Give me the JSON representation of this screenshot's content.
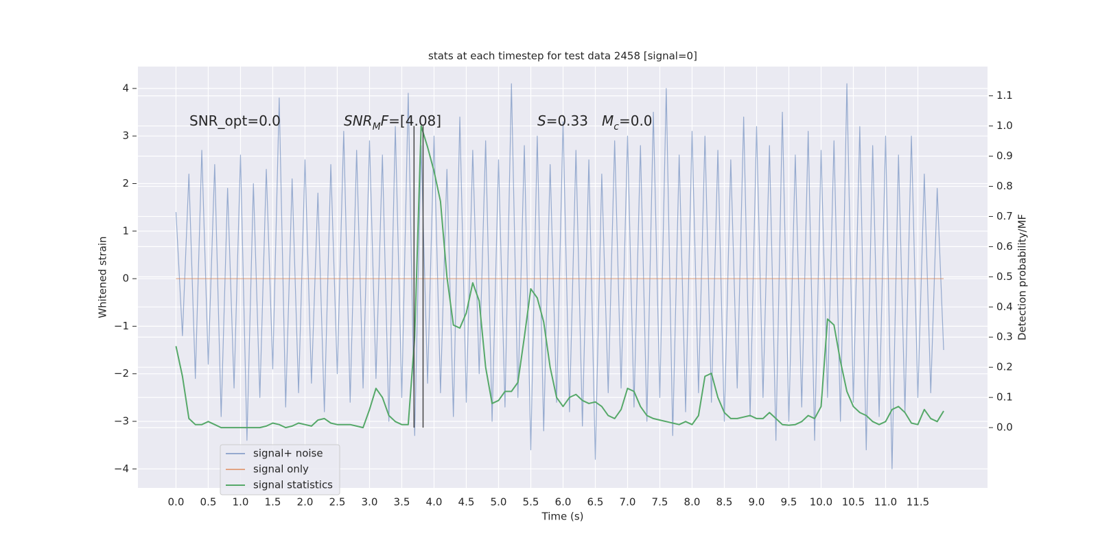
{
  "chart_data": {
    "type": "line",
    "title": "stats at each timestep for test data 2458 [signal=0]",
    "x_label": "Time (s)",
    "y_label": "Whitened strain",
    "y2_label": "Detection probability/MF",
    "grid": true,
    "legend": "lower left",
    "xlim": [
      -0.59,
      12.58
    ],
    "ylim": [
      -4.4,
      4.46
    ],
    "y2lim": [
      -0.2,
      1.197
    ],
    "xticks": [
      {
        "value": 0,
        "label": "0.0"
      },
      0.5,
      {
        "value": 1,
        "label": "1.0"
      },
      1.5,
      {
        "value": 2,
        "label": "2.0"
      },
      2.5,
      {
        "value": 3,
        "label": "3.0"
      },
      3.5,
      {
        "value": 4,
        "label": "4.0"
      },
      4.5,
      {
        "value": 5,
        "label": "5.0"
      },
      5.5,
      {
        "value": 6,
        "label": "6.0"
      },
      6.5,
      {
        "value": 7,
        "label": "7.0"
      },
      7.5,
      {
        "value": 8,
        "label": "8.0"
      },
      8.5,
      {
        "value": 9,
        "label": "9.0"
      },
      9.5,
      {
        "value": 10,
        "label": "10.0"
      },
      10.5,
      {
        "value": 11,
        "label": "11.0"
      },
      11.5
    ],
    "yticks": [
      {
        "value": -4,
        "label": "−4"
      },
      {
        "value": -3,
        "label": "−3"
      },
      {
        "value": -2,
        "label": "−2"
      },
      {
        "value": -1,
        "label": "−1"
      },
      0,
      1,
      2,
      3,
      4
    ],
    "y2ticks": [
      {
        "value": 0,
        "label": "0.0"
      },
      0.1,
      0.2,
      0.3,
      0.4,
      0.5,
      0.6,
      0.7,
      0.8,
      0.9,
      {
        "value": 1,
        "label": "1.0"
      },
      1.1
    ],
    "x": [
      0,
      0.1,
      0.2,
      0.3,
      0.4,
      0.5,
      0.6,
      0.7,
      0.8,
      0.9,
      1,
      1.1,
      1.2,
      1.3,
      1.4,
      1.5,
      1.6,
      1.7,
      1.8,
      1.9,
      2,
      2.1,
      2.2,
      2.3,
      2.4,
      2.5,
      2.6,
      2.7,
      2.8,
      2.9,
      3,
      3.1,
      3.2,
      3.3,
      3.4,
      3.5,
      3.6,
      3.7,
      3.8,
      3.9,
      4,
      4.1,
      4.2,
      4.3,
      4.4,
      4.5,
      4.6,
      4.7,
      4.8,
      4.9,
      5,
      5.1,
      5.2,
      5.3,
      5.4,
      5.5,
      5.6,
      5.7,
      5.8,
      5.9,
      6,
      6.1,
      6.2,
      6.3,
      6.4,
      6.5,
      6.6,
      6.7,
      6.8,
      6.9,
      7,
      7.1,
      7.2,
      7.3,
      7.4,
      7.5,
      7.6,
      7.7,
      7.8,
      7.9,
      8,
      8.1,
      8.2,
      8.3,
      8.4,
      8.5,
      8.6,
      8.7,
      8.8,
      8.9,
      9,
      9.1,
      9.2,
      9.3,
      9.4,
      9.5,
      9.6,
      9.7,
      9.8,
      9.9,
      10,
      10.1,
      10.2,
      10.3,
      10.4,
      10.5,
      10.6,
      10.7,
      10.8,
      10.9,
      11,
      11.1,
      11.2,
      11.3,
      11.4,
      11.5,
      11.6,
      11.7,
      11.8,
      11.9
    ],
    "series": [
      {
        "name": "signal+ noise",
        "color": "#4c72b0",
        "opacity": 0.55,
        "values": [
          1.4,
          -1.2,
          2.2,
          -2.1,
          2.7,
          -1.8,
          2.4,
          -2.9,
          1.9,
          -2.3,
          2.6,
          -3.4,
          2.0,
          -2.5,
          2.3,
          -1.9,
          3.8,
          -2.7,
          2.1,
          -2.4,
          2.5,
          -2.2,
          1.8,
          -2.8,
          2.4,
          -2.0,
          3.1,
          -2.6,
          2.7,
          -2.3,
          2.9,
          -2.1,
          2.6,
          -3.0,
          3.2,
          -2.5,
          3.9,
          -3.3,
          2.8,
          -2.2,
          3.0,
          -2.4,
          2.3,
          -2.9,
          3.4,
          -2.6,
          2.7,
          -2.0,
          2.9,
          -3.0,
          2.5,
          -2.7,
          4.1,
          -2.5,
          2.8,
          -3.6,
          3.0,
          -3.2,
          2.4,
          -2.6,
          3.3,
          -2.8,
          2.7,
          -3.1,
          2.5,
          -3.8,
          2.2,
          -2.4,
          2.9,
          -2.3,
          3.0,
          -2.7,
          2.8,
          -3.0,
          3.5,
          -2.5,
          4.0,
          -3.3,
          2.6,
          -2.8,
          3.1,
          -2.4,
          3.0,
          -2.6,
          2.7,
          -3.0,
          2.5,
          -2.3,
          3.4,
          -2.9,
          3.2,
          -2.5,
          2.8,
          -3.4,
          3.5,
          -3.0,
          2.6,
          -2.7,
          3.1,
          -3.4,
          2.7,
          -2.5,
          2.9,
          -3.0,
          4.1,
          -2.6,
          3.2,
          -3.6,
          2.8,
          -2.9,
          3.0,
          -4.0,
          2.6,
          -2.8,
          3.0,
          -2.5,
          2.2,
          -2.4,
          1.9,
          -1.5
        ]
      },
      {
        "name": "signal only",
        "color": "#dd8452",
        "opacity": 0.7,
        "values": [
          0,
          0,
          0,
          0,
          0,
          0,
          0,
          0,
          0,
          0,
          0,
          0,
          0,
          0,
          0,
          0,
          0,
          0,
          0,
          0,
          0,
          0,
          0,
          0,
          0,
          0,
          0,
          0,
          0,
          0,
          0,
          0,
          0,
          0,
          0,
          0,
          0,
          0,
          0,
          0,
          0,
          0,
          0,
          0,
          0,
          0,
          0,
          0,
          0,
          0,
          0,
          0,
          0,
          0,
          0,
          0,
          0,
          0,
          0,
          0,
          0,
          0,
          0,
          0,
          0,
          0,
          0,
          0,
          0,
          0,
          0,
          0,
          0,
          0,
          0,
          0,
          0,
          0,
          0,
          0,
          0,
          0,
          0,
          0,
          0,
          0,
          0,
          0,
          0,
          0,
          0,
          0,
          0,
          0,
          0,
          0,
          0,
          0,
          0,
          0,
          0,
          0,
          0,
          0,
          0,
          0,
          0,
          0,
          0,
          0,
          0,
          0,
          0,
          0,
          0,
          0,
          0,
          0,
          0,
          0
        ]
      },
      {
        "name": "signal statistics",
        "color": "#55a868",
        "opacity": 1,
        "axis": "y2",
        "values": [
          0.27,
          0.17,
          0.03,
          0.01,
          0.01,
          0.02,
          0.01,
          0,
          0,
          0,
          0,
          0,
          0,
          0,
          0.005,
          0.015,
          0.01,
          0,
          0.005,
          0.015,
          0.01,
          0.005,
          0.025,
          0.03,
          0.015,
          0.01,
          0.01,
          0.01,
          0.005,
          0,
          0.06,
          0.13,
          0.1,
          0.04,
          0.02,
          0.01,
          0.01,
          0.3,
          1.0,
          0.93,
          0.85,
          0.75,
          0.5,
          0.34,
          0.33,
          0.38,
          0.48,
          0.42,
          0.2,
          0.08,
          0.09,
          0.12,
          0.12,
          0.15,
          0.3,
          0.46,
          0.43,
          0.35,
          0.2,
          0.1,
          0.07,
          0.1,
          0.11,
          0.09,
          0.08,
          0.085,
          0.07,
          0.04,
          0.03,
          0.06,
          0.13,
          0.12,
          0.07,
          0.04,
          0.03,
          0.025,
          0.02,
          0.015,
          0.01,
          0.02,
          0.01,
          0.04,
          0.17,
          0.18,
          0.1,
          0.05,
          0.03,
          0.03,
          0.035,
          0.04,
          0.03,
          0.03,
          0.05,
          0.03,
          0.01,
          0.008,
          0.01,
          0.02,
          0.04,
          0.03,
          0.07,
          0.36,
          0.34,
          0.22,
          0.12,
          0.07,
          0.05,
          0.04,
          0.02,
          0.01,
          0.02,
          0.06,
          0.07,
          0.05,
          0.015,
          0.01,
          0.06,
          0.03,
          0.02,
          0.055
        ]
      }
    ],
    "vlines": [
      {
        "x": 3.69,
        "ymin": 0,
        "ymax": 1.0,
        "color": "#444444"
      },
      {
        "x": 3.83,
        "ymin": 0,
        "ymax": 1.0,
        "color": "#444444"
      }
    ],
    "annotations": [
      [
        {
          "text": "SNR_opt=0.0"
        }
      ],
      [
        {
          "text": "SNR",
          "italic": true
        },
        {
          "text": "M",
          "italic": true,
          "sub": true
        },
        {
          "text": "F",
          "italic": true
        },
        {
          "text": "=[4.08]"
        }
      ],
      [
        {
          "text": "S",
          "italic": true
        },
        {
          "text": "=0.33"
        }
      ],
      [
        {
          "text": "M",
          "italic": true
        },
        {
          "text": "c",
          "italic": true,
          "sub": true
        },
        {
          "text": "=0.0"
        }
      ]
    ]
  }
}
